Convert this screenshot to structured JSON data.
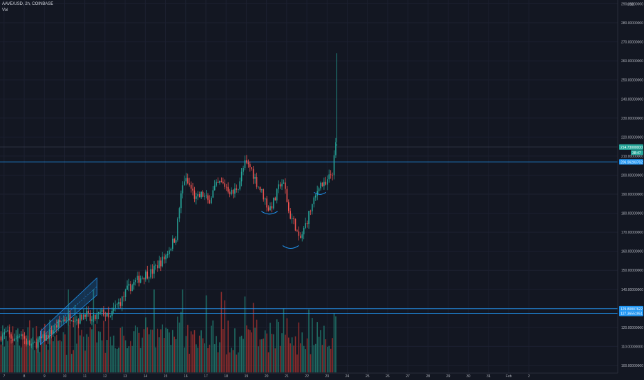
{
  "header": {
    "symbol_line": "AAVE/USD, 2h, COINBASE",
    "indicator": "Vol"
  },
  "colors": {
    "background": "#131722",
    "up": "#26a69a",
    "down": "#ef5350",
    "vol_up": "#1e6b63",
    "vol_down": "#8c2d2d",
    "level_line": "#2196f3",
    "axis_text": "#b2b5be"
  },
  "chart_data": {
    "type": "candlestick",
    "y_axis": {
      "currency": "USD",
      "ylim": [
        96,
        292
      ],
      "ticks": [
        {
          "value": 290,
          "label": "290.00000000"
        },
        {
          "value": 280,
          "label": "280.00000000"
        },
        {
          "value": 270,
          "label": "270.00000000"
        },
        {
          "value": 260,
          "label": "260.00000000"
        },
        {
          "value": 250,
          "label": "250.00000000"
        },
        {
          "value": 240,
          "label": "240.00000000"
        },
        {
          "value": 230,
          "label": "230.00000000"
        },
        {
          "value": 220,
          "label": "220.00000000"
        },
        {
          "value": 210,
          "label": "210.00000000"
        },
        {
          "value": 200,
          "label": "200.00000000"
        },
        {
          "value": 190,
          "label": "190.00000000"
        },
        {
          "value": 180,
          "label": "180.00000000"
        },
        {
          "value": 170,
          "label": "170.00000000"
        },
        {
          "value": 160,
          "label": "160.00000000"
        },
        {
          "value": 150,
          "label": "150.00000000"
        },
        {
          "value": 140,
          "label": "140.00000000"
        },
        {
          "value": 130,
          "label": "130.00000000"
        },
        {
          "value": 120,
          "label": "120.00000000"
        },
        {
          "value": 110,
          "label": "110.00000000"
        },
        {
          "value": 100,
          "label": "100.00000000"
        }
      ]
    },
    "x_axis": {
      "day_range": [
        6.8,
        37.4
      ],
      "ticks": [
        {
          "day": 7,
          "label": "7"
        },
        {
          "day": 8,
          "label": "8"
        },
        {
          "day": 9,
          "label": "9"
        },
        {
          "day": 10,
          "label": "10"
        },
        {
          "day": 11,
          "label": "11"
        },
        {
          "day": 12,
          "label": "12"
        },
        {
          "day": 13,
          "label": "13"
        },
        {
          "day": 14,
          "label": "14"
        },
        {
          "day": 15,
          "label": "15"
        },
        {
          "day": 16,
          "label": "16"
        },
        {
          "day": 17,
          "label": "17"
        },
        {
          "day": 18,
          "label": "18"
        },
        {
          "day": 19,
          "label": "19"
        },
        {
          "day": 20,
          "label": "20"
        },
        {
          "day": 21,
          "label": "21"
        },
        {
          "day": 22,
          "label": "22"
        },
        {
          "day": 23,
          "label": "23"
        },
        {
          "day": 24,
          "label": "24"
        },
        {
          "day": 25,
          "label": "25"
        },
        {
          "day": 26,
          "label": "26"
        },
        {
          "day": 27,
          "label": "27"
        },
        {
          "day": 28,
          "label": "28"
        },
        {
          "day": 29,
          "label": "29"
        },
        {
          "day": 30,
          "label": "30"
        },
        {
          "day": 31,
          "label": "31"
        },
        {
          "day": 32,
          "label": "Feb"
        },
        {
          "day": 33,
          "label": "2"
        }
      ]
    },
    "price_path": [
      [
        6.8,
        115
      ],
      [
        7.2,
        117
      ],
      [
        7.6,
        113
      ],
      [
        7.9,
        118
      ],
      [
        8.2,
        112
      ],
      [
        8.5,
        110
      ],
      [
        8.8,
        113
      ],
      [
        9.2,
        115
      ],
      [
        9.6,
        120
      ],
      [
        10.0,
        124
      ],
      [
        10.4,
        126
      ],
      [
        10.8,
        124
      ],
      [
        11.1,
        128
      ],
      [
        11.4,
        123
      ],
      [
        11.7,
        126
      ],
      [
        12.0,
        128
      ],
      [
        12.3,
        124
      ],
      [
        12.6,
        131
      ],
      [
        12.9,
        134
      ],
      [
        13.2,
        140
      ],
      [
        13.5,
        143
      ],
      [
        13.8,
        146
      ],
      [
        14.1,
        148
      ],
      [
        14.4,
        149
      ],
      [
        14.7,
        153
      ],
      [
        15.0,
        156
      ],
      [
        15.3,
        162
      ],
      [
        15.6,
        168
      ],
      [
        15.8,
        186
      ],
      [
        16.0,
        198
      ],
      [
        16.3,
        194
      ],
      [
        16.6,
        187
      ],
      [
        16.9,
        190
      ],
      [
        17.2,
        186
      ],
      [
        17.5,
        193
      ],
      [
        17.8,
        196
      ],
      [
        18.1,
        194
      ],
      [
        18.4,
        190
      ],
      [
        18.7,
        195
      ],
      [
        19.0,
        206
      ],
      [
        19.3,
        204
      ],
      [
        19.6,
        196
      ],
      [
        19.9,
        190
      ],
      [
        20.2,
        182
      ],
      [
        20.5,
        187
      ],
      [
        20.8,
        197
      ],
      [
        21.0,
        193
      ],
      [
        21.2,
        180
      ],
      [
        21.5,
        174
      ],
      [
        21.7,
        165
      ],
      [
        21.9,
        170
      ],
      [
        22.2,
        180
      ],
      [
        22.5,
        188
      ],
      [
        22.7,
        196
      ],
      [
        23.0,
        194
      ],
      [
        23.2,
        199
      ],
      [
        23.4,
        203
      ],
      [
        23.48,
        216
      ]
    ],
    "spike": {
      "day": 23.48,
      "high": 264
    },
    "volume": {
      "max_value": 100
    },
    "horizontal_levels": [
      {
        "price": 214.73,
        "label": "214.73000000",
        "style": "current"
      },
      {
        "price": 206.96,
        "label": "206.96283762",
        "style": "level"
      },
      {
        "price": 129.81,
        "label": "129.80807622",
        "style": "level"
      },
      {
        "price": 127.37,
        "label": "127.36551951",
        "style": "level"
      }
    ],
    "countdown_badge": {
      "label": "38:47"
    },
    "channel": {
      "start": {
        "day": 8.8,
        "lower": 111,
        "upper": 118
      },
      "end": {
        "day": 11.6,
        "lower": 137,
        "upper": 146
      }
    },
    "arcs": [
      {
        "center_day": 20.15,
        "price": 181,
        "width_days": 0.8
      },
      {
        "center_day": 21.2,
        "price": 163,
        "width_days": 0.8
      },
      {
        "center_day": 22.65,
        "price": 191,
        "width_days": 0.6
      }
    ]
  }
}
